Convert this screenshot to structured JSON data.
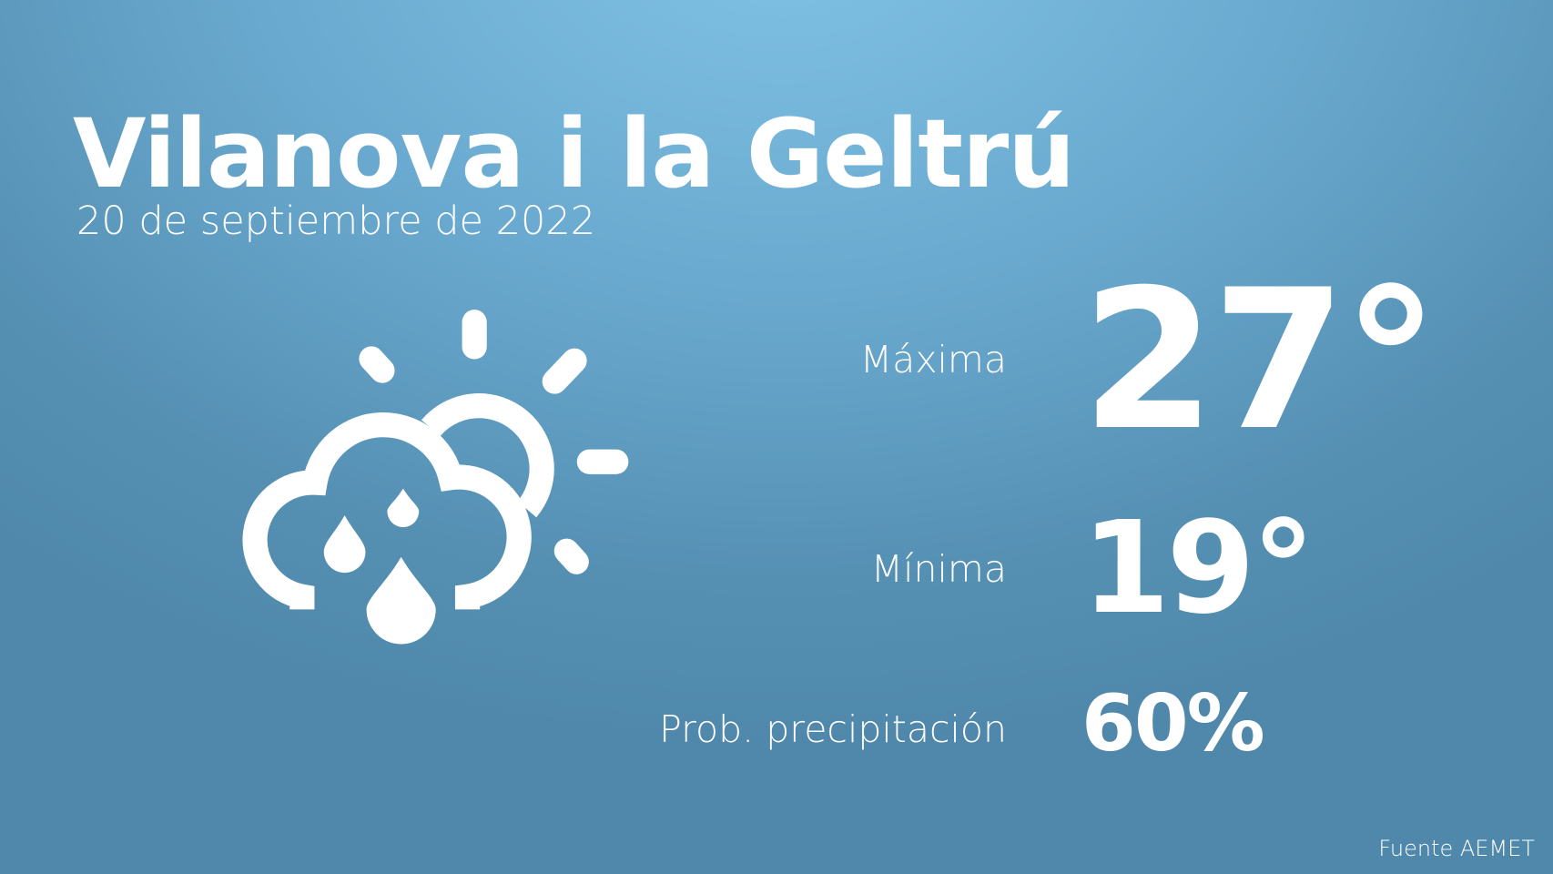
{
  "location": "Vilanova i la Geltrú",
  "date": "20 de septiembre de 2022",
  "weather_icon": "sun-cloud-rain-icon",
  "stats": {
    "max_label": "Máxima",
    "max_value": "27°",
    "min_label": "Mínima",
    "min_value": "19°",
    "precip_label": "Prob. precipitación",
    "precip_value": "60%"
  },
  "source": "Fuente AEMET",
  "colors": {
    "background_top": "#80c3e6",
    "background_bottom": "#4f88aa",
    "text": "#ffffff"
  }
}
